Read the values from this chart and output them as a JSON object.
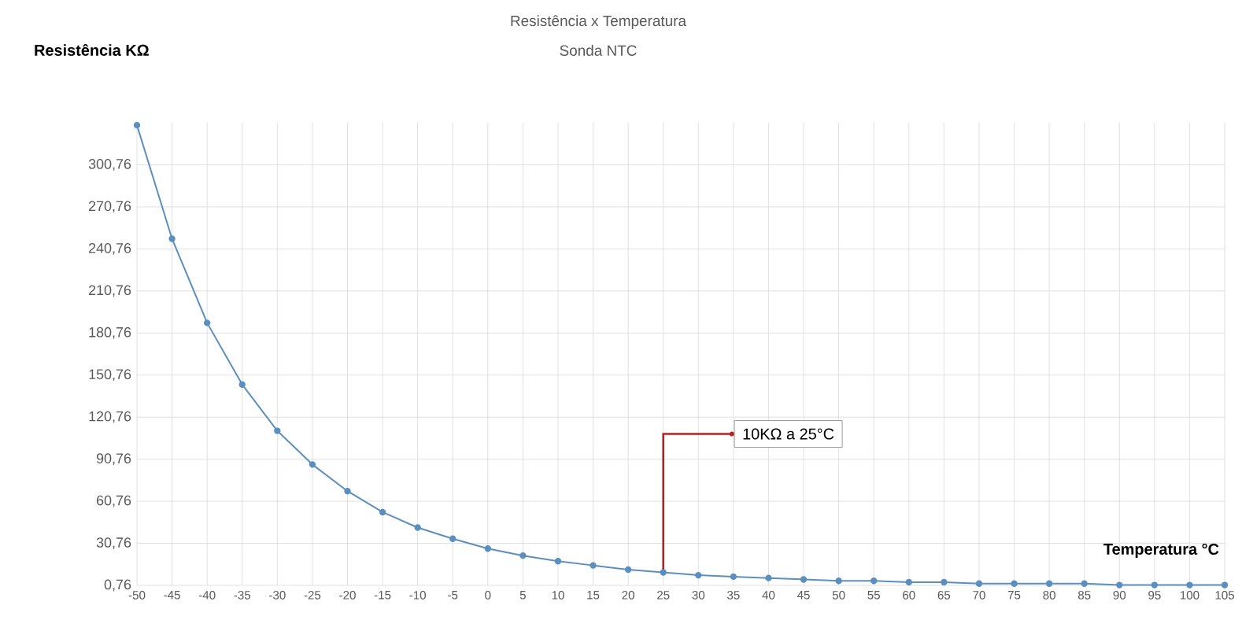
{
  "chart_data": {
    "type": "line",
    "title": "Resistência x Temperatura",
    "subtitle": "Sonda NTC",
    "ylabel": "Resistência KΩ",
    "xlabel": "Temperatura °C",
    "categories": [
      "-50",
      "-45",
      "-40",
      "-35",
      "-30",
      "-25",
      "-20",
      "-15",
      "-10",
      "-5",
      "0",
      "5",
      "10",
      "15",
      "20",
      "25",
      "30",
      "35",
      "40",
      "45",
      "50",
      "55",
      "60",
      "65",
      "70",
      "75",
      "80",
      "85",
      "90",
      "95",
      "100",
      "105"
    ],
    "series": [
      {
        "color": "#5b8fbf",
        "values": [
          329,
          248,
          188,
          144,
          111,
          87,
          68,
          53,
          42,
          34,
          27,
          22,
          18,
          15,
          12,
          10,
          8,
          7,
          6,
          5,
          4,
          4,
          3,
          3,
          2,
          2,
          2,
          2,
          1,
          1,
          1,
          1
        ]
      }
    ],
    "ylim": [
      0.76,
      330.76
    ],
    "yticks": [
      {
        "value": 0.76,
        "label": "0,76"
      },
      {
        "value": 30.76,
        "label": "30,76"
      },
      {
        "value": 60.76,
        "label": "60,76"
      },
      {
        "value": 90.76,
        "label": "90,76"
      },
      {
        "value": 120.76,
        "label": "120,76"
      },
      {
        "value": 150.76,
        "label": "150,76"
      },
      {
        "value": 180.76,
        "label": "180,76"
      },
      {
        "value": 210.76,
        "label": "210,76"
      },
      {
        "value": 240.76,
        "label": "240,76"
      },
      {
        "value": 270.76,
        "label": "270,76"
      },
      {
        "value": 300.76,
        "label": "300,76"
      }
    ],
    "annotations": [
      {
        "text": "10KΩ a 25°C",
        "x": "25",
        "y": 10
      }
    ],
    "grid": true,
    "marker": "circle",
    "line_style": "solid"
  }
}
